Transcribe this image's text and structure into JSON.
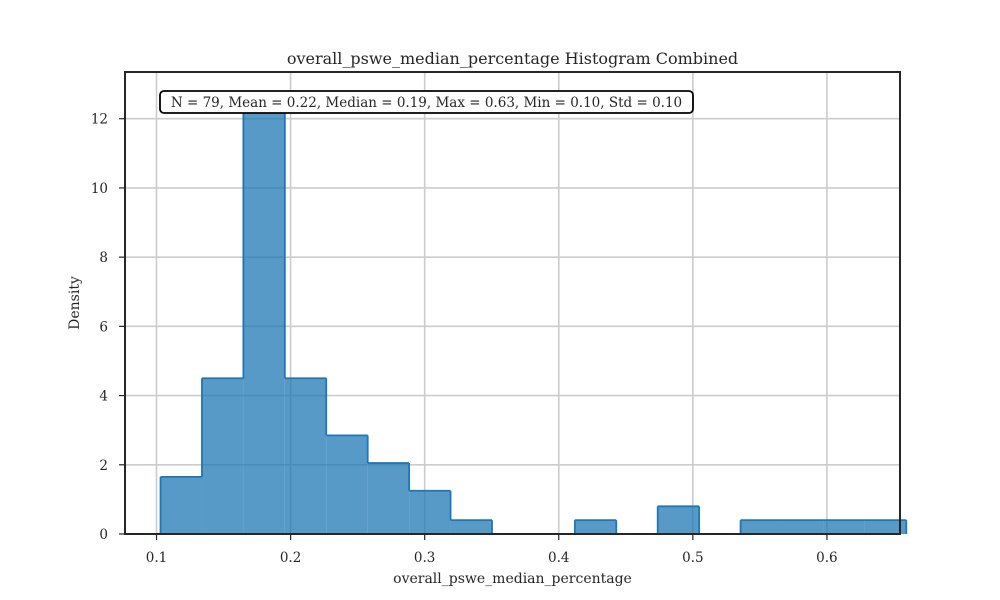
{
  "chart_data": {
    "type": "bar",
    "title": "overall_pswe_median_percentage Histogram Combined",
    "xlabel": "overall_pswe_median_percentage",
    "ylabel": "Density",
    "xlim": [
      0.0765,
      0.6545
    ],
    "ylim": [
      0,
      13.35
    ],
    "xticks": [
      0.1,
      0.2,
      0.3,
      0.4,
      0.5,
      0.6
    ],
    "yticks": [
      0,
      2,
      4,
      6,
      8,
      10,
      12
    ],
    "grid": true,
    "bin_start": 0.103,
    "bin_width": 0.0309,
    "values": [
      1.65,
      4.5,
      12.25,
      4.5,
      2.85,
      2.05,
      1.25,
      0.4,
      0,
      0,
      0.4,
      0,
      0.8,
      0,
      0.4,
      0.4,
      0.4,
      0.4
    ],
    "color": "#1f77b4",
    "stats_text": "N = 79, Mean = 0.22, Median = 0.19, Max = 0.63, Min = 0.10, Std = 0.10"
  }
}
